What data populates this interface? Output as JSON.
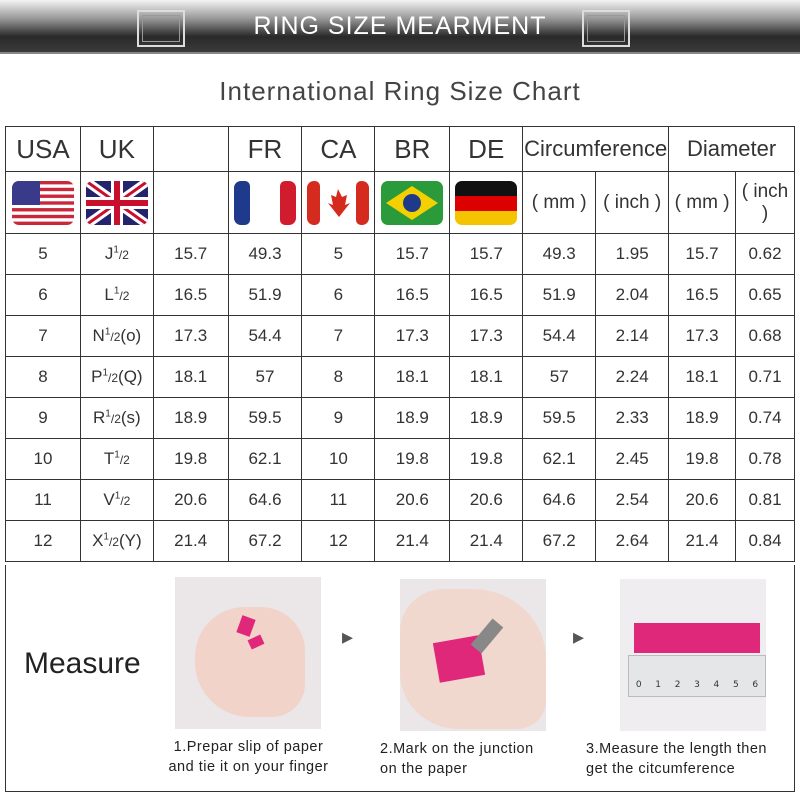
{
  "banner": {
    "title": "RING SIZE MEARMENT"
  },
  "subtitle": "International Ring Size Chart",
  "table": {
    "headers": [
      "USA",
      "UK",
      "",
      "FR",
      "CA",
      "BR",
      "DE",
      "Circumference",
      "Diameter"
    ],
    "units": [
      "( mm )",
      "( inch )",
      "( mm )",
      "( inch )"
    ],
    "flags": [
      "usa-flag",
      "uk-flag",
      "",
      "france-flag",
      "canada-flag",
      "brazil-flag",
      "germany-flag"
    ],
    "rows": [
      [
        "5",
        "J",
        "",
        "15.7",
        "49.3",
        "5",
        "15.7",
        "15.7",
        "49.3",
        "1.95",
        "15.7",
        "0.62"
      ],
      [
        "6",
        "L",
        "",
        "16.5",
        "51.9",
        "6",
        "16.5",
        "16.5",
        "51.9",
        "2.04",
        "16.5",
        "0.65"
      ],
      [
        "7",
        "N",
        "(o)",
        "17.3",
        "54.4",
        "7",
        "17.3",
        "17.3",
        "54.4",
        "2.14",
        "17.3",
        "0.68"
      ],
      [
        "8",
        "P",
        "(Q)",
        "18.1",
        "57",
        "8",
        "18.1",
        "18.1",
        "57",
        "2.24",
        "18.1",
        "0.71"
      ],
      [
        "9",
        "R",
        "(s)",
        "18.9",
        "59.5",
        "9",
        "18.9",
        "18.9",
        "59.5",
        "2.33",
        "18.9",
        "0.74"
      ],
      [
        "10",
        "T",
        "",
        "19.8",
        "62.1",
        "10",
        "19.8",
        "19.8",
        "62.1",
        "2.45",
        "19.8",
        "0.78"
      ],
      [
        "11",
        "V",
        "",
        "20.6",
        "64.6",
        "11",
        "20.6",
        "20.6",
        "64.6",
        "2.54",
        "20.6",
        "0.81"
      ],
      [
        "12",
        "X",
        "(Y)",
        "21.4",
        "67.2",
        "12",
        "21.4",
        "21.4",
        "67.2",
        "2.64",
        "21.4",
        "0.84"
      ]
    ],
    "half_sup": "1",
    "half_sub": "/2"
  },
  "measure": {
    "label": "Measure",
    "steps": [
      {
        "line1": "1.Prepar slip of paper",
        "line2": "and tie it on your finger"
      },
      {
        "line1": "2.Mark on the junction",
        "line2": "on the paper"
      },
      {
        "line1": "3.Measure the length then",
        "line2": "get the citcumference"
      }
    ],
    "ruler_ticks": [
      "0",
      "1",
      "2",
      "3",
      "4",
      "5",
      "6"
    ],
    "accent": "#e0287a"
  }
}
